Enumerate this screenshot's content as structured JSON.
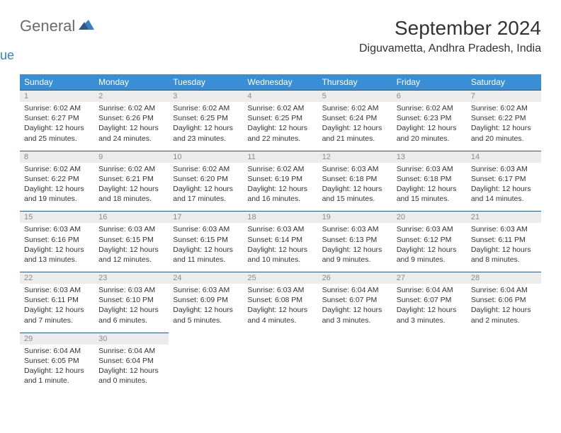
{
  "logo": {
    "text1": "General",
    "text2": "Blue"
  },
  "title": "September 2024",
  "location": "Diguvametta, Andhra Pradesh, India",
  "colors": {
    "header_bg": "#3a8fd4",
    "daynum_bg": "#ececec",
    "daynum_border": "#2b5a87",
    "daynum_text": "#8b8b8b",
    "logo_accent": "#3a7fc4",
    "logo_gray": "#6b6b6b"
  },
  "day_names": [
    "Sunday",
    "Monday",
    "Tuesday",
    "Wednesday",
    "Thursday",
    "Friday",
    "Saturday"
  ],
  "weeks": [
    [
      {
        "n": "1",
        "sr": "Sunrise: 6:02 AM",
        "ss": "Sunset: 6:27 PM",
        "d1": "Daylight: 12 hours",
        "d2": "and 25 minutes."
      },
      {
        "n": "2",
        "sr": "Sunrise: 6:02 AM",
        "ss": "Sunset: 6:26 PM",
        "d1": "Daylight: 12 hours",
        "d2": "and 24 minutes."
      },
      {
        "n": "3",
        "sr": "Sunrise: 6:02 AM",
        "ss": "Sunset: 6:25 PM",
        "d1": "Daylight: 12 hours",
        "d2": "and 23 minutes."
      },
      {
        "n": "4",
        "sr": "Sunrise: 6:02 AM",
        "ss": "Sunset: 6:25 PM",
        "d1": "Daylight: 12 hours",
        "d2": "and 22 minutes."
      },
      {
        "n": "5",
        "sr": "Sunrise: 6:02 AM",
        "ss": "Sunset: 6:24 PM",
        "d1": "Daylight: 12 hours",
        "d2": "and 21 minutes."
      },
      {
        "n": "6",
        "sr": "Sunrise: 6:02 AM",
        "ss": "Sunset: 6:23 PM",
        "d1": "Daylight: 12 hours",
        "d2": "and 20 minutes."
      },
      {
        "n": "7",
        "sr": "Sunrise: 6:02 AM",
        "ss": "Sunset: 6:22 PM",
        "d1": "Daylight: 12 hours",
        "d2": "and 20 minutes."
      }
    ],
    [
      {
        "n": "8",
        "sr": "Sunrise: 6:02 AM",
        "ss": "Sunset: 6:22 PM",
        "d1": "Daylight: 12 hours",
        "d2": "and 19 minutes."
      },
      {
        "n": "9",
        "sr": "Sunrise: 6:02 AM",
        "ss": "Sunset: 6:21 PM",
        "d1": "Daylight: 12 hours",
        "d2": "and 18 minutes."
      },
      {
        "n": "10",
        "sr": "Sunrise: 6:02 AM",
        "ss": "Sunset: 6:20 PM",
        "d1": "Daylight: 12 hours",
        "d2": "and 17 minutes."
      },
      {
        "n": "11",
        "sr": "Sunrise: 6:02 AM",
        "ss": "Sunset: 6:19 PM",
        "d1": "Daylight: 12 hours",
        "d2": "and 16 minutes."
      },
      {
        "n": "12",
        "sr": "Sunrise: 6:03 AM",
        "ss": "Sunset: 6:18 PM",
        "d1": "Daylight: 12 hours",
        "d2": "and 15 minutes."
      },
      {
        "n": "13",
        "sr": "Sunrise: 6:03 AM",
        "ss": "Sunset: 6:18 PM",
        "d1": "Daylight: 12 hours",
        "d2": "and 15 minutes."
      },
      {
        "n": "14",
        "sr": "Sunrise: 6:03 AM",
        "ss": "Sunset: 6:17 PM",
        "d1": "Daylight: 12 hours",
        "d2": "and 14 minutes."
      }
    ],
    [
      {
        "n": "15",
        "sr": "Sunrise: 6:03 AM",
        "ss": "Sunset: 6:16 PM",
        "d1": "Daylight: 12 hours",
        "d2": "and 13 minutes."
      },
      {
        "n": "16",
        "sr": "Sunrise: 6:03 AM",
        "ss": "Sunset: 6:15 PM",
        "d1": "Daylight: 12 hours",
        "d2": "and 12 minutes."
      },
      {
        "n": "17",
        "sr": "Sunrise: 6:03 AM",
        "ss": "Sunset: 6:15 PM",
        "d1": "Daylight: 12 hours",
        "d2": "and 11 minutes."
      },
      {
        "n": "18",
        "sr": "Sunrise: 6:03 AM",
        "ss": "Sunset: 6:14 PM",
        "d1": "Daylight: 12 hours",
        "d2": "and 10 minutes."
      },
      {
        "n": "19",
        "sr": "Sunrise: 6:03 AM",
        "ss": "Sunset: 6:13 PM",
        "d1": "Daylight: 12 hours",
        "d2": "and 9 minutes."
      },
      {
        "n": "20",
        "sr": "Sunrise: 6:03 AM",
        "ss": "Sunset: 6:12 PM",
        "d1": "Daylight: 12 hours",
        "d2": "and 9 minutes."
      },
      {
        "n": "21",
        "sr": "Sunrise: 6:03 AM",
        "ss": "Sunset: 6:11 PM",
        "d1": "Daylight: 12 hours",
        "d2": "and 8 minutes."
      }
    ],
    [
      {
        "n": "22",
        "sr": "Sunrise: 6:03 AM",
        "ss": "Sunset: 6:11 PM",
        "d1": "Daylight: 12 hours",
        "d2": "and 7 minutes."
      },
      {
        "n": "23",
        "sr": "Sunrise: 6:03 AM",
        "ss": "Sunset: 6:10 PM",
        "d1": "Daylight: 12 hours",
        "d2": "and 6 minutes."
      },
      {
        "n": "24",
        "sr": "Sunrise: 6:03 AM",
        "ss": "Sunset: 6:09 PM",
        "d1": "Daylight: 12 hours",
        "d2": "and 5 minutes."
      },
      {
        "n": "25",
        "sr": "Sunrise: 6:03 AM",
        "ss": "Sunset: 6:08 PM",
        "d1": "Daylight: 12 hours",
        "d2": "and 4 minutes."
      },
      {
        "n": "26",
        "sr": "Sunrise: 6:04 AM",
        "ss": "Sunset: 6:07 PM",
        "d1": "Daylight: 12 hours",
        "d2": "and 3 minutes."
      },
      {
        "n": "27",
        "sr": "Sunrise: 6:04 AM",
        "ss": "Sunset: 6:07 PM",
        "d1": "Daylight: 12 hours",
        "d2": "and 3 minutes."
      },
      {
        "n": "28",
        "sr": "Sunrise: 6:04 AM",
        "ss": "Sunset: 6:06 PM",
        "d1": "Daylight: 12 hours",
        "d2": "and 2 minutes."
      }
    ],
    [
      {
        "n": "29",
        "sr": "Sunrise: 6:04 AM",
        "ss": "Sunset: 6:05 PM",
        "d1": "Daylight: 12 hours",
        "d2": "and 1 minute."
      },
      {
        "n": "30",
        "sr": "Sunrise: 6:04 AM",
        "ss": "Sunset: 6:04 PM",
        "d1": "Daylight: 12 hours",
        "d2": "and 0 minutes."
      },
      null,
      null,
      null,
      null,
      null
    ]
  ]
}
